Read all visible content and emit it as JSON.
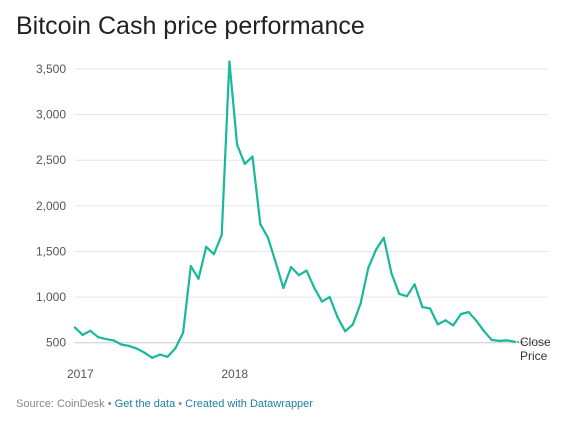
{
  "chart_data": {
    "type": "line",
    "title": "Bitcoin Cash price performance",
    "xlabel": "",
    "ylabel": "",
    "x_tick_labels": [
      "2017",
      "2018"
    ],
    "y_ticks": [
      500,
      1000,
      1500,
      2000,
      2500,
      3000,
      3500
    ],
    "y_tick_labels": [
      "500",
      "1,000",
      "1,500",
      "2,000",
      "2,500",
      "3,000",
      "3,500"
    ],
    "ylim": [
      420,
      3620
    ],
    "grid": true,
    "line_color": "#18b89c",
    "series": [
      {
        "name": "Close Price",
        "values": [
          665,
          585,
          630,
          560,
          540,
          525,
          480,
          465,
          435,
          390,
          335,
          370,
          345,
          440,
          610,
          1340,
          1200,
          1550,
          1470,
          1680,
          3580,
          2670,
          2460,
          2540,
          1800,
          1650,
          1380,
          1100,
          1330,
          1240,
          1290,
          1100,
          950,
          1000,
          780,
          625,
          700,
          930,
          1320,
          1520,
          1650,
          1260,
          1035,
          1010,
          1140,
          890,
          875,
          700,
          745,
          690,
          815,
          835,
          740,
          625,
          530,
          520,
          525,
          510
        ]
      }
    ]
  },
  "footer": {
    "source_label": "Source: CoinDesk",
    "separator": "•",
    "get_data_link": "Get the data",
    "created_with_link": "Created with Datawrapper"
  }
}
